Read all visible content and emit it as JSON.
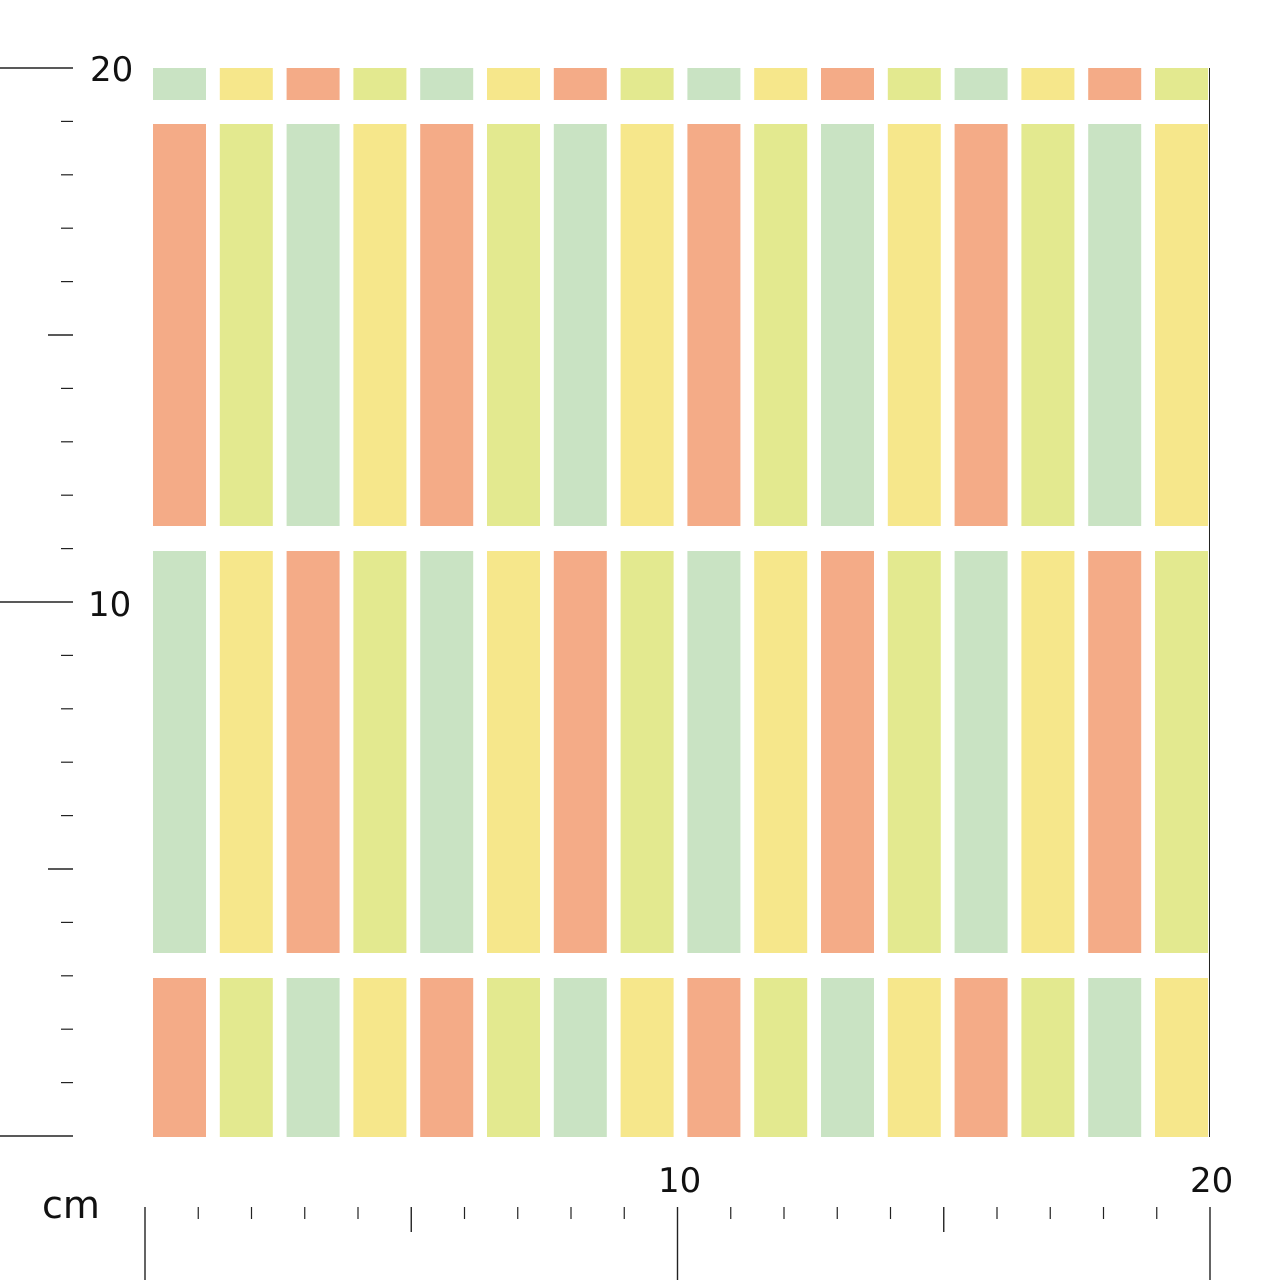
{
  "unit_label": "cm",
  "x_axis": {
    "range": [
      0,
      20
    ],
    "minor_step": 1,
    "major_every": 5,
    "labels": [
      "10",
      "20"
    ]
  },
  "y_axis": {
    "range": [
      0,
      20
    ],
    "minor_step": 1,
    "major_every": 5,
    "labels": [
      "10",
      "20"
    ]
  },
  "colors": {
    "sage": "#c9e3c3",
    "yellow": "#f6e78b",
    "salmon": "#f4ab87",
    "lime": "#e3e98f",
    "background": "#ffffff",
    "ruler": "#222222"
  },
  "pattern": {
    "columns": 16,
    "row_bands": [
      [
        "sage",
        "yellow",
        "salmon",
        "lime",
        "sage",
        "yellow",
        "salmon",
        "lime",
        "sage",
        "yellow",
        "salmon",
        "lime",
        "sage",
        "yellow",
        "salmon",
        "lime"
      ],
      [
        "salmon",
        "lime",
        "sage",
        "yellow",
        "salmon",
        "lime",
        "sage",
        "yellow",
        "salmon",
        "lime",
        "sage",
        "yellow",
        "salmon",
        "lime",
        "sage",
        "yellow"
      ],
      [
        "sage",
        "yellow",
        "salmon",
        "lime",
        "sage",
        "yellow",
        "salmon",
        "lime",
        "sage",
        "yellow",
        "salmon",
        "lime",
        "sage",
        "yellow",
        "salmon",
        "lime"
      ],
      [
        "salmon",
        "lime",
        "sage",
        "yellow",
        "salmon",
        "lime",
        "sage",
        "yellow",
        "salmon",
        "lime",
        "sage",
        "yellow",
        "salmon",
        "lime",
        "sage",
        "yellow"
      ]
    ]
  }
}
